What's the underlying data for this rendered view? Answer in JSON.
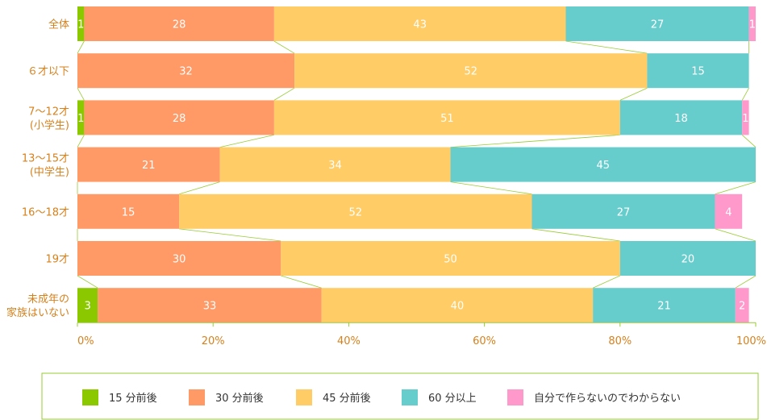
{
  "chart_data": {
    "type": "bar",
    "orientation": "horizontal",
    "stacked": true,
    "percent": true,
    "categories": [
      [
        "全体"
      ],
      [
        "６才以下"
      ],
      [
        "7〜12才",
        "(小学生)"
      ],
      [
        "13〜15才",
        "(中学生)"
      ],
      [
        "16〜18才"
      ],
      [
        "19才"
      ],
      [
        "未成年の",
        "家族はいない"
      ]
    ],
    "series": [
      {
        "name": "15 分前後",
        "color": "#8cc800",
        "values": [
          1,
          0,
          1,
          0,
          0,
          0,
          3
        ]
      },
      {
        "name": "30 分前後",
        "color": "#ff9966",
        "values": [
          28,
          32,
          28,
          21,
          15,
          30,
          33
        ]
      },
      {
        "name": "45 分前後",
        "color": "#ffcc66",
        "values": [
          43,
          52,
          51,
          34,
          52,
          50,
          40
        ]
      },
      {
        "name": "60 分以上",
        "color": "#66cccc",
        "values": [
          27,
          15,
          18,
          45,
          27,
          20,
          21
        ]
      },
      {
        "name": "自分で作らないのでわからない",
        "color": "#ff99cc",
        "values": [
          1,
          0,
          1,
          0,
          4,
          0,
          2
        ]
      }
    ],
    "xlim": [
      0,
      100
    ],
    "xticks": [
      "0%",
      "20%",
      "40%",
      "60%",
      "80%",
      "100%"
    ],
    "connector_color": "#99cc33",
    "legend_position": "bottom",
    "legend_border_color": "#99cc33"
  }
}
